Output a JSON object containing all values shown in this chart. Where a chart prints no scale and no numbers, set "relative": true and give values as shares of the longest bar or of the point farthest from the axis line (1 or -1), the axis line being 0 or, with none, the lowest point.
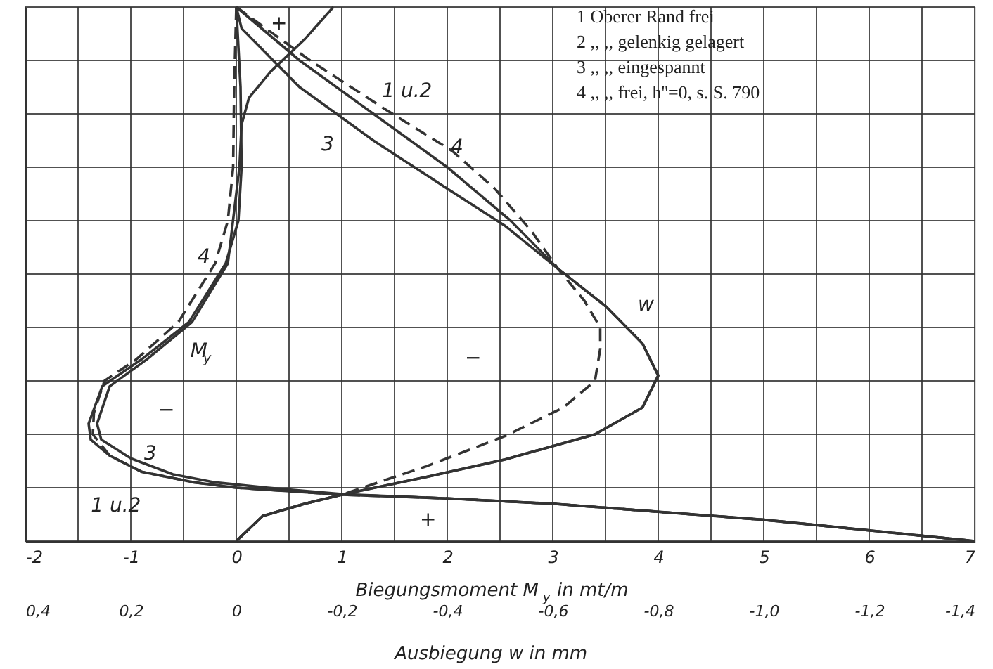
{
  "chart_data": {
    "type": "line",
    "relative": true,
    "xlabel": "Biegungsmoment M$_{y}$ in mt/m",
    "x2label": "Ausbiegung w in mm",
    "xlim": [
      -2,
      7
    ],
    "xticks": [
      -2,
      {
        "value": -1.5,
        "label": null
      },
      -1,
      {
        "value": -0.5,
        "label": null
      },
      0,
      {
        "value": 0.5,
        "label": null
      },
      1,
      {
        "value": 1.5,
        "label": null
      },
      2,
      {
        "value": 2.5,
        "label": null
      },
      3,
      {
        "value": 3.5,
        "label": null
      },
      4,
      {
        "value": 4.5,
        "label": null
      },
      5,
      {
        "value": 5.5,
        "label": null
      },
      6,
      {
        "value": 6.5,
        "label": null
      },
      7
    ],
    "x2lim": [
      0.4,
      -1.4
    ],
    "x2ticks": [
      {
        "value": 0.4,
        "label": "0,4"
      },
      {
        "value": 0.2,
        "label": "0,2"
      },
      0,
      {
        "value": -0.2,
        "label": "-0,2"
      },
      {
        "value": -0.4,
        "label": "-0,4"
      },
      {
        "value": -0.6,
        "label": "-0,6"
      },
      {
        "value": -0.8,
        "label": "-0,8"
      },
      {
        "value": -1.0,
        "label": "-1,0"
      },
      {
        "value": -1.2,
        "label": "-1,2"
      },
      {
        "value": -1.4,
        "label": "-1,4"
      }
    ],
    "grid": true,
    "series": [
      {
        "color": "#333333",
        "line_style": "solid",
        "x": [
          0,
          0.04,
          0.05,
          0.02,
          -0.1,
          -0.45,
          -0.9,
          -1.27,
          -1.4,
          -1.38,
          -1.2,
          -0.9,
          -0.4,
          0,
          1,
          2,
          3,
          4,
          5,
          6,
          7
        ],
        "values": [
          1,
          0.85,
          0.7,
          0.6,
          0.52,
          0.41,
          0.34,
          0.29,
          0.22,
          0.19,
          0.16,
          0.13,
          0.11,
          0.1,
          0.087,
          0.08,
          0.07,
          0.055,
          0.04,
          0.02,
          0
        ]
      },
      {
        "color": "#333333",
        "line_style": "solid",
        "x": [
          0.92,
          0.65,
          0.33,
          0.12,
          0.05,
          0.03,
          -0.08,
          -0.42,
          -0.85,
          -1.2,
          -1.32,
          -1.28,
          -1.0,
          -0.6,
          -0.2,
          0.3,
          1,
          2,
          3,
          4,
          5,
          6,
          7
        ],
        "values": [
          1,
          0.94,
          0.88,
          0.83,
          0.78,
          0.7,
          0.52,
          0.41,
          0.34,
          0.29,
          0.22,
          0.19,
          0.155,
          0.125,
          0.11,
          0.1,
          0.088,
          0.08,
          0.07,
          0.055,
          0.04,
          0.02,
          0
        ]
      },
      {
        "color": "#333333",
        "line_style": "dashed",
        "x": [
          0,
          -0.02,
          -0.03,
          -0.08,
          -0.2,
          -0.55,
          -0.95,
          -1.25,
          -1.35,
          -1.36,
          -1.2,
          -0.9,
          -0.4,
          0,
          1,
          2,
          3,
          4,
          5,
          6,
          7
        ],
        "values": [
          1,
          0.85,
          0.7,
          0.6,
          0.52,
          0.41,
          0.34,
          0.3,
          0.24,
          0.2,
          0.16,
          0.13,
          0.11,
          0.1,
          0.087,
          0.08,
          0.07,
          0.055,
          0.04,
          0.02,
          0
        ]
      },
      {
        "color": "#333333",
        "line_style": "solid",
        "axis": "x2",
        "x": [
          0,
          -0.12,
          -0.26,
          -0.4,
          -0.52,
          -0.61,
          -0.7,
          -0.77,
          -0.8,
          -0.77,
          -0.68,
          -0.51,
          -0.36,
          -0.2,
          -0.13,
          -0.05,
          0
        ],
        "values": [
          1,
          0.9,
          0.8,
          0.7,
          0.6,
          0.51,
          0.44,
          0.37,
          0.31,
          0.25,
          0.2,
          0.153,
          0.12,
          0.087,
          0.07,
          0.047,
          0
        ]
      },
      {
        "color": "#333333",
        "line_style": "solid",
        "axis": "x2",
        "x": [
          0,
          -0.01,
          -0.12,
          -0.26,
          -0.4,
          -0.51,
          -0.61,
          -0.7,
          -0.77,
          -0.8,
          -0.77,
          -0.68,
          -0.51,
          -0.36,
          -0.2,
          -0.13,
          -0.05,
          0
        ],
        "values": [
          1,
          0.96,
          0.85,
          0.75,
          0.66,
          0.59,
          0.51,
          0.44,
          0.37,
          0.31,
          0.25,
          0.2,
          0.153,
          0.12,
          0.087,
          0.07,
          0.047,
          0
        ]
      },
      {
        "color": "#333333",
        "line_style": "dashed",
        "axis": "x2",
        "x": [
          0,
          -0.14,
          -0.28,
          -0.41,
          -0.49,
          -0.56,
          -0.61,
          -0.66,
          -0.69,
          -0.69,
          -0.68,
          -0.62,
          -0.51,
          -0.36,
          -0.2,
          -0.13,
          -0.05,
          0
        ],
        "values": [
          1,
          0.9,
          0.81,
          0.73,
          0.66,
          0.58,
          0.51,
          0.45,
          0.4,
          0.36,
          0.3,
          0.25,
          0.197,
          0.14,
          0.087,
          0.07,
          0.047,
          0
        ]
      }
    ],
    "annotations": [
      "1 Oberer Rand frei",
      "2 ,, ,, gelenkig gelagert",
      "3 ,, ,, eingespannt",
      "4 ,, ,, frei, h''=0, s. S. 790",
      "1 u.2",
      "3",
      "4",
      "4",
      "M$_{y}$",
      "w",
      "3",
      "1 u.2",
      "+",
      "−",
      "−",
      "+"
    ]
  }
}
